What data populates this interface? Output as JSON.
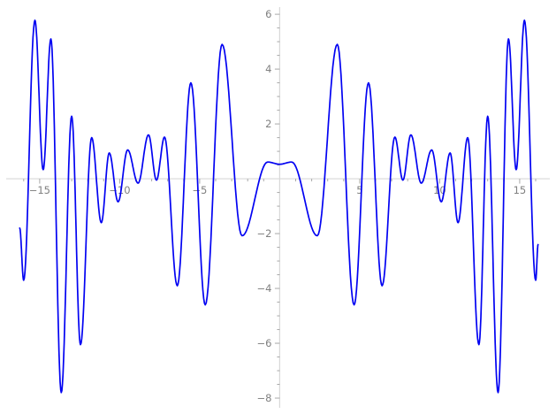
{
  "chart_data": {
    "type": "line",
    "subtype": "function-plot",
    "title": "",
    "xlabel": "",
    "ylabel": "",
    "grid": false,
    "legend": null,
    "background_color": "#ffffff",
    "curve": {
      "color": "#0202f2",
      "stroke_width": 1.7,
      "interpolation": "cosine-between-extrema",
      "description": "Even oscillating function, amplitude beats growing toward edges; sampled at its local extrema and endpoints",
      "extrema_points": [
        [
          -16.25,
          -1.8
        ],
        [
          -16.0,
          -3.7
        ],
        [
          -15.3,
          5.78
        ],
        [
          -14.78,
          0.33
        ],
        [
          -14.3,
          5.1
        ],
        [
          -13.65,
          -7.8
        ],
        [
          -13.0,
          2.28
        ],
        [
          -12.45,
          -6.05
        ],
        [
          -11.75,
          1.5
        ],
        [
          -11.15,
          -1.6
        ],
        [
          -10.65,
          0.94
        ],
        [
          -10.1,
          -0.84
        ],
        [
          -9.5,
          1.05
        ],
        [
          -8.85,
          -0.16
        ],
        [
          -8.2,
          1.6
        ],
        [
          -7.7,
          -0.05
        ],
        [
          -7.2,
          1.52
        ],
        [
          -6.4,
          -3.9
        ],
        [
          -5.55,
          3.5
        ],
        [
          -4.65,
          -4.6
        ],
        [
          -3.6,
          4.9
        ],
        [
          -2.35,
          -2.08
        ],
        [
          -0.75,
          0.61
        ],
        [
          0,
          0.53
        ],
        [
          0.75,
          0.61
        ],
        [
          2.35,
          -2.08
        ],
        [
          3.6,
          4.9
        ],
        [
          4.65,
          -4.6
        ],
        [
          5.55,
          3.5
        ],
        [
          6.4,
          -3.9
        ],
        [
          7.2,
          1.52
        ],
        [
          7.7,
          -0.05
        ],
        [
          8.2,
          1.6
        ],
        [
          8.85,
          -0.16
        ],
        [
          9.5,
          1.05
        ],
        [
          10.1,
          -0.84
        ],
        [
          10.65,
          0.94
        ],
        [
          11.15,
          -1.6
        ],
        [
          11.75,
          1.5
        ],
        [
          12.45,
          -6.05
        ],
        [
          13.0,
          2.28
        ],
        [
          13.65,
          -7.8
        ],
        [
          14.3,
          5.1
        ],
        [
          14.78,
          0.33
        ],
        [
          15.3,
          5.78
        ],
        [
          16.0,
          -3.7
        ],
        [
          16.15,
          -2.4
        ]
      ]
    },
    "axes": {
      "style": "cross-at-origin",
      "axis_line_color": "#d8d8d8",
      "tick_color": "#a8a8a8",
      "label_color": "#808080",
      "x": {
        "visible_range": [
          -17.48,
          17.27
        ],
        "labeled_tick_values": [
          -15,
          -10,
          -5,
          5,
          10,
          15
        ],
        "labels": [
          "−15",
          "−10",
          "−5",
          "5",
          "10",
          "15"
        ],
        "minor_tick_step": 1,
        "minor_tick_range": [
          -16,
          16
        ]
      },
      "y": {
        "visible_range": [
          -8.58,
          6.52
        ],
        "labeled_tick_values": [
          6,
          4,
          2,
          -2,
          -4,
          -6,
          -8
        ],
        "labels": [
          "6",
          "4",
          "2",
          "−2",
          "−4",
          "−6",
          "−8"
        ],
        "minor_tick_step": 0.5,
        "minor_tick_range": [
          -8,
          6
        ]
      }
    }
  }
}
